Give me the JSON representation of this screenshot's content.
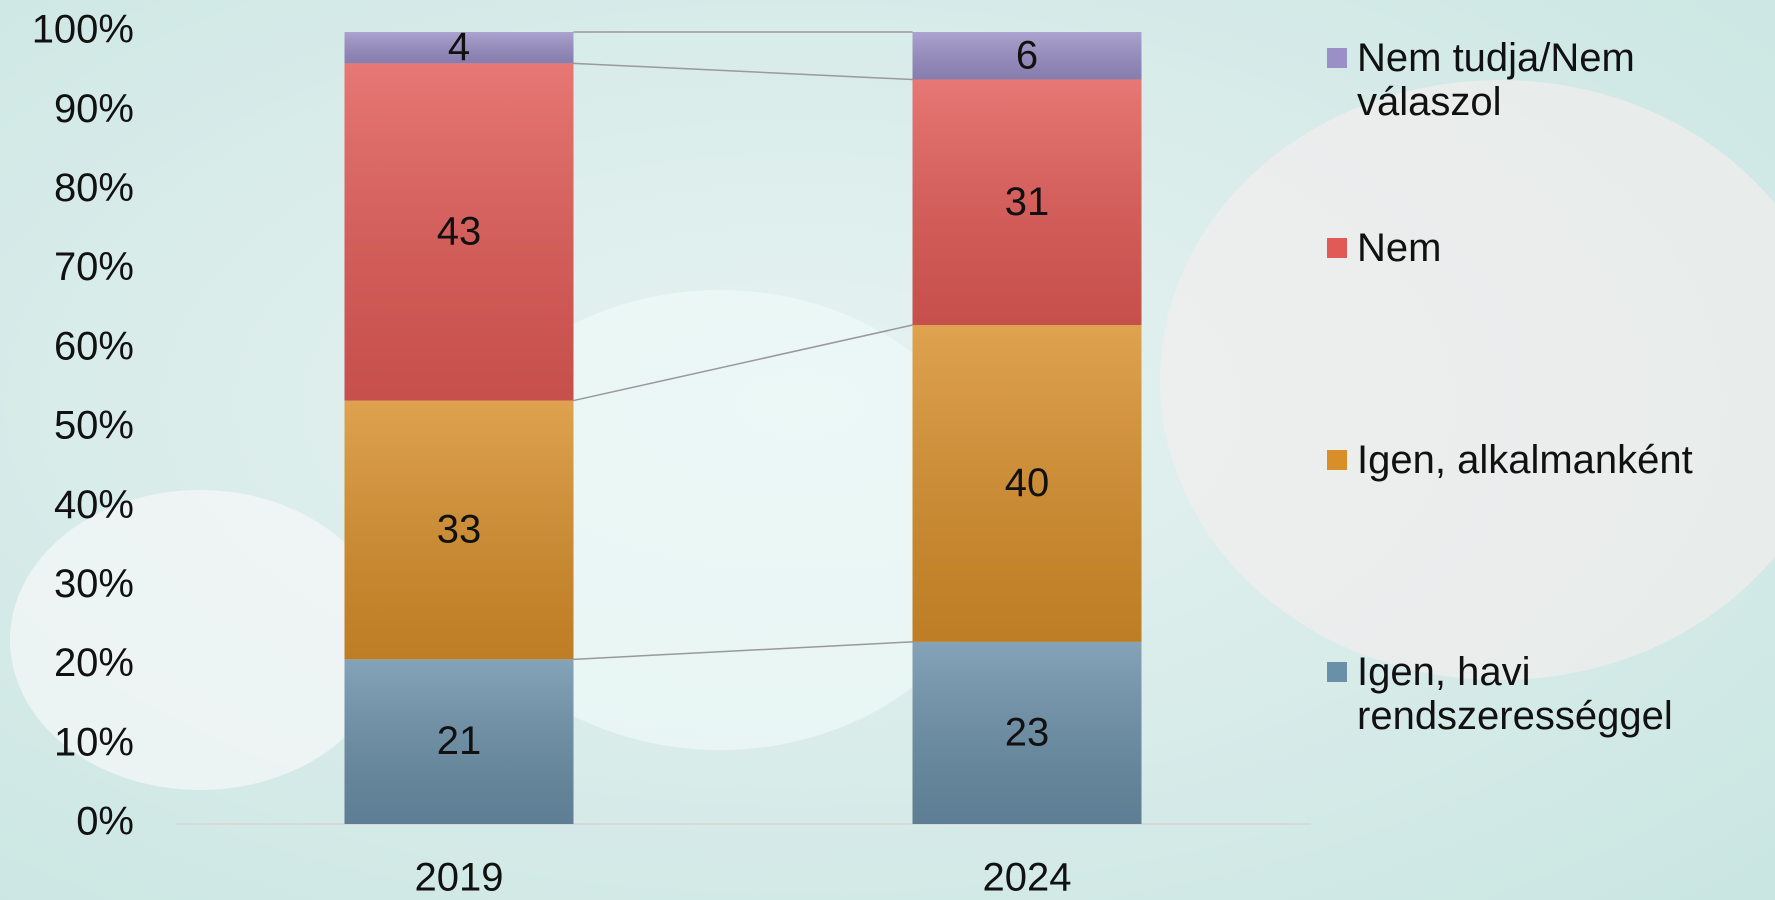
{
  "chart_data": {
    "type": "bar",
    "stacking": "percent",
    "categories": [
      "2019",
      "2024"
    ],
    "series": [
      {
        "name": "Igen, havi rendszerességgel",
        "color": "#6a8fa8",
        "values": [
          21,
          23
        ]
      },
      {
        "name": "Igen, alkalmanként",
        "color": "#d88f2a",
        "values": [
          33,
          40
        ]
      },
      {
        "name": "Nem",
        "color": "#e25a56",
        "values": [
          43,
          31
        ]
      },
      {
        "name": "Nem tudja/Nem válaszol",
        "color": "#9a8fc6",
        "values": [
          4,
          6
        ]
      }
    ],
    "ylim": [
      0,
      100
    ],
    "yticks": [
      {
        "value": 0,
        "label": "0%"
      },
      {
        "value": 10,
        "label": "10%"
      },
      {
        "value": 20,
        "label": "20%"
      },
      {
        "value": 30,
        "label": "30%"
      },
      {
        "value": 40,
        "label": "40%"
      },
      {
        "value": 50,
        "label": "50%"
      },
      {
        "value": 60,
        "label": "60%"
      },
      {
        "value": 70,
        "label": "70%"
      },
      {
        "value": 80,
        "label": "80%"
      },
      {
        "value": 90,
        "label": "90%"
      },
      {
        "value": 100,
        "label": "100%"
      }
    ],
    "legend": "right",
    "legend_order": "reversed",
    "connector_lines": true
  }
}
